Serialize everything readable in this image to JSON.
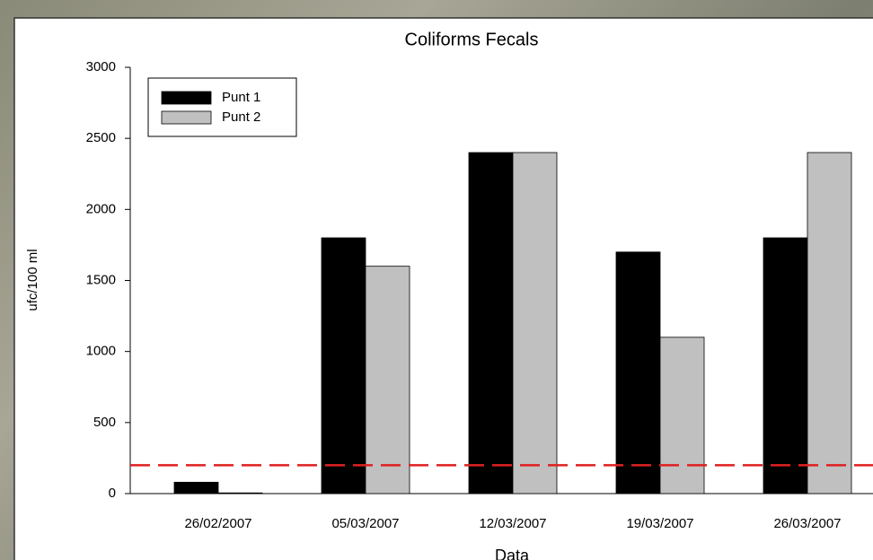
{
  "chart_data": {
    "type": "bar",
    "title": "Coliforms Fecals",
    "x_label": "Data",
    "y_label": "ufc/100 ml",
    "categories": [
      "26/02/2007",
      "05/03/2007",
      "12/03/2007",
      "19/03/2007",
      "26/03/2007"
    ],
    "series": [
      {
        "name": "Punt 1",
        "color": "#000000",
        "values": [
          80,
          1800,
          2400,
          1700,
          1800
        ]
      },
      {
        "name": "Punt 2",
        "color": "#c0c0c0",
        "values": [
          5,
          1600,
          2400,
          1100,
          2400
        ]
      }
    ],
    "reference_line": {
      "value": 200,
      "color": "#e02020"
    },
    "ylim": [
      0,
      3000
    ],
    "yticks": [
      0,
      500,
      1000,
      1500,
      2000,
      2500,
      3000
    ],
    "legend": "upper left"
  }
}
